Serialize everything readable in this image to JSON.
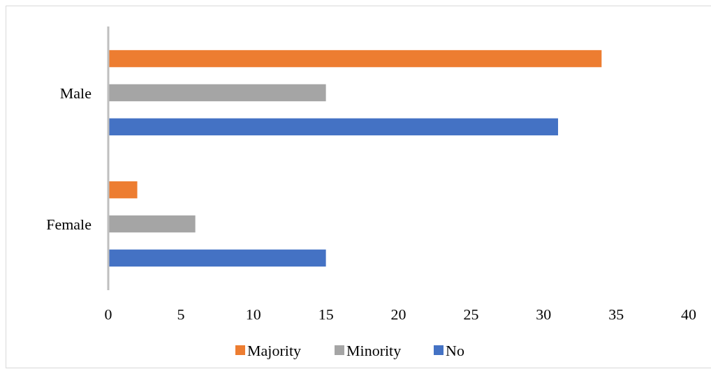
{
  "chart_data": {
    "type": "bar",
    "orientation": "horizontal",
    "categories": [
      "Male",
      "Female"
    ],
    "series": [
      {
        "name": "Majority",
        "color": "#ed7d31",
        "values": [
          34,
          2
        ]
      },
      {
        "name": "Minority",
        "color": "#a5a5a5",
        "values": [
          15,
          6
        ]
      },
      {
        "name": "No",
        "color": "#4472c4",
        "values": [
          31,
          15
        ]
      }
    ],
    "xlim": [
      0,
      40
    ],
    "xticks": [
      0,
      5,
      10,
      15,
      20,
      25,
      30,
      35,
      40
    ],
    "grid": false,
    "legend": "bottom"
  }
}
